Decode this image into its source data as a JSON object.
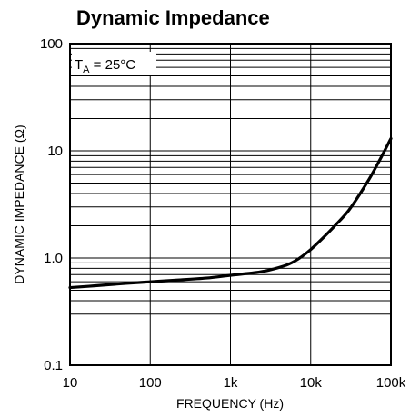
{
  "chart_data": {
    "type": "line",
    "title": "Dynamic Impedance",
    "xlabel": "FREQUENCY (Hz)",
    "ylabel": "DYNAMIC IMPEDANCE (Ω)",
    "x_scale": "log",
    "y_scale": "log",
    "xlim": [
      10,
      100000
    ],
    "ylim": [
      0.1,
      100
    ],
    "grid": true,
    "x_ticks": [
      10,
      100,
      1000,
      10000,
      100000
    ],
    "x_tick_labels": [
      "10",
      "100",
      "1k",
      "10k",
      "100k"
    ],
    "y_ticks": [
      0.1,
      1,
      10,
      100
    ],
    "y_tick_labels": [
      "0.1",
      "1.0",
      "10",
      "100"
    ],
    "annotation": {
      "text_main": "T",
      "text_sub": "A",
      "text_rest": " = 25°C",
      "position": "top-left"
    },
    "series": [
      {
        "x": [
          10,
          20,
          50,
          100,
          200,
          500,
          1000,
          2000,
          3000,
          5000,
          7000,
          10000,
          15000,
          20000,
          30000,
          50000,
          70000,
          100000
        ],
        "y": [
          0.53,
          0.55,
          0.58,
          0.6,
          0.62,
          0.65,
          0.69,
          0.73,
          0.77,
          0.86,
          0.98,
          1.2,
          1.6,
          2.0,
          2.8,
          5.0,
          7.8,
          13.0
        ]
      }
    ]
  }
}
